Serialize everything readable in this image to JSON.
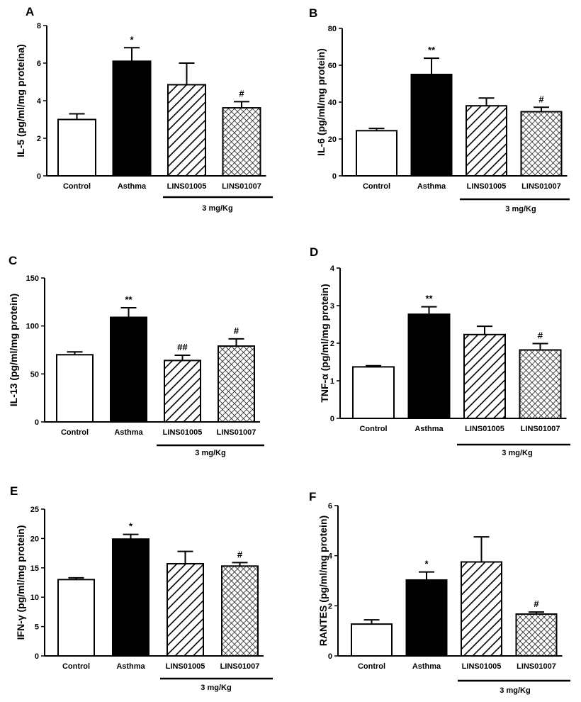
{
  "group_label": "3 mg/Kg",
  "colors": {
    "asthma": "#000000",
    "control": "#ffffff",
    "stroke": "#000000"
  },
  "chart_data": [
    {
      "panel": "A",
      "type": "bar",
      "ylabel": "IL-5 (pg/ml/mg proteína)",
      "ylim": [
        0,
        8
      ],
      "yticks": [
        0,
        2,
        4,
        6,
        8
      ],
      "categories": [
        "Control",
        "Asthma",
        "LINS01005",
        "LINS01007"
      ],
      "fills": [
        "white",
        "black",
        "diagonal-hatch",
        "crosshatch"
      ],
      "values": [
        3.0,
        6.1,
        4.85,
        3.62
      ],
      "errors": [
        0.3,
        0.72,
        1.15,
        0.33
      ],
      "significance": [
        "",
        "*",
        "",
        "#"
      ],
      "group_label": "3 mg/Kg"
    },
    {
      "panel": "B",
      "type": "bar",
      "ylabel": "IL-6 (pg/ml/mg protein)",
      "ylim": [
        0,
        80
      ],
      "yticks": [
        0,
        20,
        40,
        60,
        80
      ],
      "categories": [
        "Control",
        "Asthma",
        "LINS01005",
        "LINS01007"
      ],
      "fills": [
        "white",
        "black",
        "diagonal-hatch",
        "crosshatch"
      ],
      "values": [
        24.5,
        55.0,
        38.0,
        34.8
      ],
      "errors": [
        1.2,
        8.8,
        4.2,
        2.4
      ],
      "significance": [
        "",
        "**",
        "",
        "#"
      ],
      "group_label": "3 mg/Kg"
    },
    {
      "panel": "C",
      "type": "bar",
      "ylabel": "IL-13 (pg/ml/mg protein)",
      "ylim": [
        0,
        150
      ],
      "yticks": [
        0,
        50,
        100,
        150
      ],
      "categories": [
        "Control",
        "Asthma",
        "LINS01005",
        "LINS01007"
      ],
      "fills": [
        "white",
        "black",
        "diagonal-hatch",
        "crosshatch"
      ],
      "values": [
        70.0,
        109.0,
        64.0,
        79.0
      ],
      "errors": [
        3.0,
        10.0,
        5.5,
        7.5
      ],
      "significance": [
        "",
        "**",
        "##",
        "#"
      ],
      "group_label": "3 mg/Kg"
    },
    {
      "panel": "D",
      "type": "bar",
      "ylabel": "TNF-α (pg/ml/mg protein)",
      "ylim": [
        0,
        4
      ],
      "yticks": [
        0,
        1,
        2,
        3,
        4
      ],
      "categories": [
        "Control",
        "Asthma",
        "LINS01005",
        "LINS01007"
      ],
      "fills": [
        "white",
        "black",
        "diagonal-hatch",
        "crosshatch"
      ],
      "values": [
        1.37,
        2.77,
        2.23,
        1.82
      ],
      "errors": [
        0.03,
        0.2,
        0.22,
        0.17
      ],
      "significance": [
        "",
        "**",
        "",
        "#"
      ],
      "group_label": "3 mg/Kg"
    },
    {
      "panel": "E",
      "type": "bar",
      "ylabel": "IFN-γ (pg/ml/mg protein)",
      "ylim": [
        0,
        25
      ],
      "yticks": [
        0,
        5,
        10,
        15,
        20,
        25
      ],
      "categories": [
        "Control",
        "Asthma",
        "LINS01005",
        "LINS01007"
      ],
      "fills": [
        "white",
        "black",
        "diagonal-hatch",
        "crosshatch"
      ],
      "values": [
        13.0,
        19.9,
        15.7,
        15.3
      ],
      "errors": [
        0.3,
        0.8,
        2.1,
        0.6
      ],
      "significance": [
        "",
        "*",
        "",
        "#"
      ],
      "group_label": "3 mg/Kg"
    },
    {
      "panel": "F",
      "type": "bar",
      "ylabel": "RANTES (pg/ml/mg protein)",
      "ylim": [
        0,
        6
      ],
      "yticks": [
        0,
        2,
        4,
        6
      ],
      "categories": [
        "Control",
        "Asthma",
        "LINS01005",
        "LINS01007"
      ],
      "fills": [
        "white",
        "black",
        "diagonal-hatch",
        "crosshatch"
      ],
      "values": [
        1.27,
        3.03,
        3.75,
        1.67
      ],
      "errors": [
        0.17,
        0.32,
        1.0,
        0.08
      ],
      "significance": [
        "",
        "*",
        "",
        "#"
      ],
      "group_label": "3 mg/Kg"
    }
  ]
}
